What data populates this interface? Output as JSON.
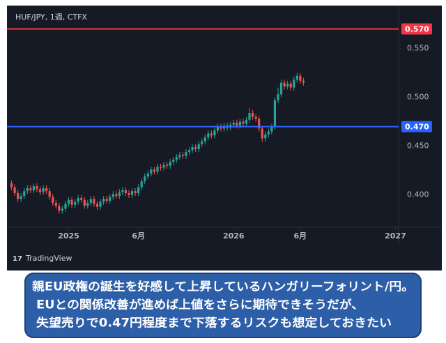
{
  "header": {
    "symbol": "HUF/JPY, 1週, CTFX",
    "brand": "TradingView"
  },
  "chart_data": {
    "type": "candlestick",
    "up_color": "#26a69a",
    "down_color": "#ef5350",
    "open": [
      0.412,
      0.408,
      0.402,
      0.396,
      0.399,
      0.404,
      0.407,
      0.405,
      0.409,
      0.406,
      0.403,
      0.407,
      0.404,
      0.398,
      0.392,
      0.389,
      0.384,
      0.386,
      0.391,
      0.395,
      0.39,
      0.393,
      0.397,
      0.395,
      0.389,
      0.392,
      0.396,
      0.391,
      0.388,
      0.393,
      0.396,
      0.394,
      0.398,
      0.401,
      0.399,
      0.403,
      0.405,
      0.402,
      0.4,
      0.404,
      0.402,
      0.408,
      0.414,
      0.419,
      0.422,
      0.426,
      0.424,
      0.429,
      0.428,
      0.431,
      0.43,
      0.434,
      0.436,
      0.439,
      0.441,
      0.44,
      0.444,
      0.446,
      0.449,
      0.447,
      0.452,
      0.455,
      0.459,
      0.463,
      0.461,
      0.466,
      0.47,
      0.468,
      0.471,
      0.469,
      0.472,
      0.474,
      0.471,
      0.475,
      0.473,
      0.477,
      0.484,
      0.48,
      0.478,
      0.468,
      0.458,
      0.462,
      0.465,
      0.47,
      0.497,
      0.503,
      0.515,
      0.511,
      0.514,
      0.51,
      0.518,
      0.522,
      0.517
    ],
    "high": [
      0.415,
      0.411,
      0.405,
      0.402,
      0.407,
      0.41,
      0.41,
      0.412,
      0.412,
      0.409,
      0.41,
      0.41,
      0.407,
      0.401,
      0.395,
      0.392,
      0.389,
      0.394,
      0.398,
      0.398,
      0.396,
      0.4,
      0.4,
      0.398,
      0.395,
      0.399,
      0.399,
      0.394,
      0.396,
      0.399,
      0.399,
      0.401,
      0.404,
      0.404,
      0.406,
      0.408,
      0.408,
      0.405,
      0.407,
      0.407,
      0.411,
      0.417,
      0.422,
      0.425,
      0.429,
      0.429,
      0.432,
      0.432,
      0.434,
      0.434,
      0.437,
      0.439,
      0.442,
      0.444,
      0.444,
      0.447,
      0.449,
      0.452,
      0.452,
      0.455,
      0.458,
      0.462,
      0.466,
      0.466,
      0.469,
      0.473,
      0.473,
      0.474,
      0.474,
      0.475,
      0.477,
      0.477,
      0.478,
      0.478,
      0.48,
      0.489,
      0.487,
      0.483,
      0.481,
      0.471,
      0.465,
      0.468,
      0.473,
      0.5,
      0.51,
      0.518,
      0.518,
      0.517,
      0.517,
      0.521,
      0.525,
      0.525,
      0.52
    ],
    "low": [
      0.405,
      0.399,
      0.393,
      0.393,
      0.396,
      0.401,
      0.402,
      0.402,
      0.403,
      0.4,
      0.4,
      0.401,
      0.395,
      0.389,
      0.386,
      0.381,
      0.381,
      0.383,
      0.388,
      0.387,
      0.387,
      0.39,
      0.392,
      0.386,
      0.386,
      0.389,
      0.388,
      0.385,
      0.385,
      0.39,
      0.391,
      0.391,
      0.395,
      0.396,
      0.396,
      0.4,
      0.399,
      0.397,
      0.397,
      0.399,
      0.399,
      0.405,
      0.411,
      0.416,
      0.419,
      0.421,
      0.421,
      0.425,
      0.425,
      0.427,
      0.427,
      0.431,
      0.433,
      0.436,
      0.437,
      0.437,
      0.441,
      0.443,
      0.444,
      0.444,
      0.449,
      0.452,
      0.456,
      0.458,
      0.458,
      0.463,
      0.465,
      0.465,
      0.466,
      0.466,
      0.469,
      0.468,
      0.468,
      0.47,
      0.47,
      0.474,
      0.477,
      0.475,
      0.465,
      0.454,
      0.455,
      0.459,
      0.462,
      0.467,
      0.494,
      0.5,
      0.508,
      0.508,
      0.507,
      0.507,
      0.515,
      0.514,
      0.512
    ],
    "close": [
      0.408,
      0.402,
      0.396,
      0.399,
      0.404,
      0.407,
      0.405,
      0.409,
      0.406,
      0.403,
      0.407,
      0.404,
      0.398,
      0.392,
      0.389,
      0.384,
      0.386,
      0.391,
      0.395,
      0.39,
      0.393,
      0.397,
      0.395,
      0.389,
      0.392,
      0.396,
      0.391,
      0.388,
      0.393,
      0.396,
      0.394,
      0.398,
      0.401,
      0.399,
      0.403,
      0.405,
      0.402,
      0.4,
      0.404,
      0.402,
      0.408,
      0.414,
      0.419,
      0.422,
      0.426,
      0.424,
      0.429,
      0.428,
      0.431,
      0.43,
      0.434,
      0.436,
      0.439,
      0.441,
      0.44,
      0.444,
      0.446,
      0.449,
      0.447,
      0.452,
      0.455,
      0.459,
      0.463,
      0.461,
      0.466,
      0.47,
      0.468,
      0.471,
      0.469,
      0.472,
      0.474,
      0.471,
      0.475,
      0.473,
      0.477,
      0.484,
      0.48,
      0.478,
      0.468,
      0.458,
      0.462,
      0.465,
      0.47,
      0.497,
      0.503,
      0.515,
      0.511,
      0.514,
      0.51,
      0.518,
      0.522,
      0.517,
      0.515
    ],
    "xlim": [
      -1,
      122
    ],
    "xticks": [
      {
        "value": 18,
        "label": "2025"
      },
      {
        "value": 40,
        "label": "6月"
      },
      {
        "value": 70,
        "label": "2026"
      },
      {
        "value": 91,
        "label": "6月"
      },
      {
        "value": 121,
        "label": "2027"
      }
    ],
    "ylim": [
      0.367,
      0.591
    ],
    "yticks": [
      {
        "value": 0.4,
        "label": "0.400"
      },
      {
        "value": 0.45,
        "label": "0.450"
      },
      {
        "value": 0.5,
        "label": "0.500"
      },
      {
        "value": 0.55,
        "label": "0.550"
      }
    ],
    "hlines": [
      {
        "value": 0.57,
        "label": "0.570",
        "color": "#f23645"
      },
      {
        "value": 0.47,
        "label": "0.470",
        "color": "#2962ff"
      }
    ]
  },
  "caption": {
    "lines": [
      "親EU政権の誕生を好感して上昇しているハンガリーフォリント/円。",
      "EUとの関係改善が進めば上値をさらに期待できそうだが、",
      "失望売りで0.47円程度まで下落するリスクも想定しておきたい"
    ]
  }
}
